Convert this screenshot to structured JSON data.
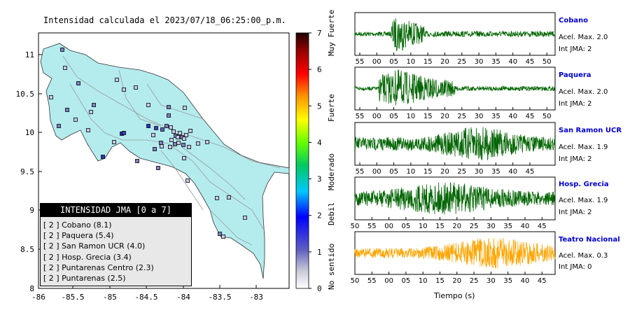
{
  "title": "Intensidad calculada el 2023/07/18_06:25:00_p.m.",
  "map": {
    "x_ticks": [
      "-86",
      "-85.5",
      "-85",
      "-84.5",
      "-84",
      "-83.5",
      "-83"
    ],
    "y_ticks": [
      "11",
      "10.5",
      "10",
      "9.5",
      "9",
      "8.5",
      "8"
    ],
    "colors": {
      "land": "#b4ecee",
      "roads": "#aaaaaa",
      "station_default": "#c8c8e8"
    }
  },
  "legend": {
    "title": "INTENSIDAD JMA [0 a 7]",
    "items": [
      "[ 2 ] Cobano (8.1)",
      "[ 2 ] Paquera (5.4)",
      "[ 2 ] San Ramon UCR (4.0)",
      "[ 2 ] Hosp. Grecia (3.4)",
      "[ 2 ] Puntarenas Centro (2.3)",
      "[ 2 ] Puntarenas (2.5)"
    ]
  },
  "colorbar": {
    "ticks": [
      "0",
      "1",
      "2",
      "3",
      "4",
      "5",
      "6",
      "7"
    ],
    "categories": [
      "No sentido",
      "Debil",
      "Moderado",
      "Fuerte",
      "Muy Fuerte"
    ]
  },
  "waveforms": {
    "xlabel": "Tiempo (s)",
    "stations": [
      {
        "name": "Cobano",
        "acel": "Acel. Max. 2.0",
        "int": "Int JMA: 2",
        "color": "#006400",
        "ticks": [
          "55",
          "00",
          "05",
          "10",
          "15",
          "20",
          "25",
          "30",
          "35",
          "40",
          "45",
          "50"
        ]
      },
      {
        "name": "Paquera",
        "acel": "Acel. Max. 2.0",
        "int": "Int JMA: 2",
        "color": "#006400",
        "ticks": [
          "55",
          "00",
          "05",
          "10",
          "15",
          "20",
          "25",
          "30",
          "35",
          "40",
          "45",
          "50"
        ]
      },
      {
        "name": "San Ramon UCR",
        "acel": "Acel. Max. 1.9",
        "int": "Int JMA: 2",
        "color": "#006400",
        "ticks": [
          "55",
          "00",
          "05",
          "10",
          "15",
          "20",
          "25",
          "30",
          "35",
          "40",
          "45"
        ]
      },
      {
        "name": "Hosp. Grecia",
        "acel": "Acel. Max. 1.9",
        "int": "Int JMA: 2",
        "color": "#006400",
        "ticks": [
          "50",
          "55",
          "00",
          "05",
          "10",
          "15",
          "20",
          "25",
          "30",
          "35",
          "40",
          "45"
        ]
      },
      {
        "name": "Teatro Nacional",
        "acel": "Acel. Max. 0.3",
        "int": "Int JMA: 0",
        "color": "#ffa500",
        "ticks": [
          "50",
          "55",
          "00",
          "05",
          "10",
          "15",
          "20",
          "25",
          "30",
          "35",
          "40",
          "45"
        ]
      }
    ]
  }
}
